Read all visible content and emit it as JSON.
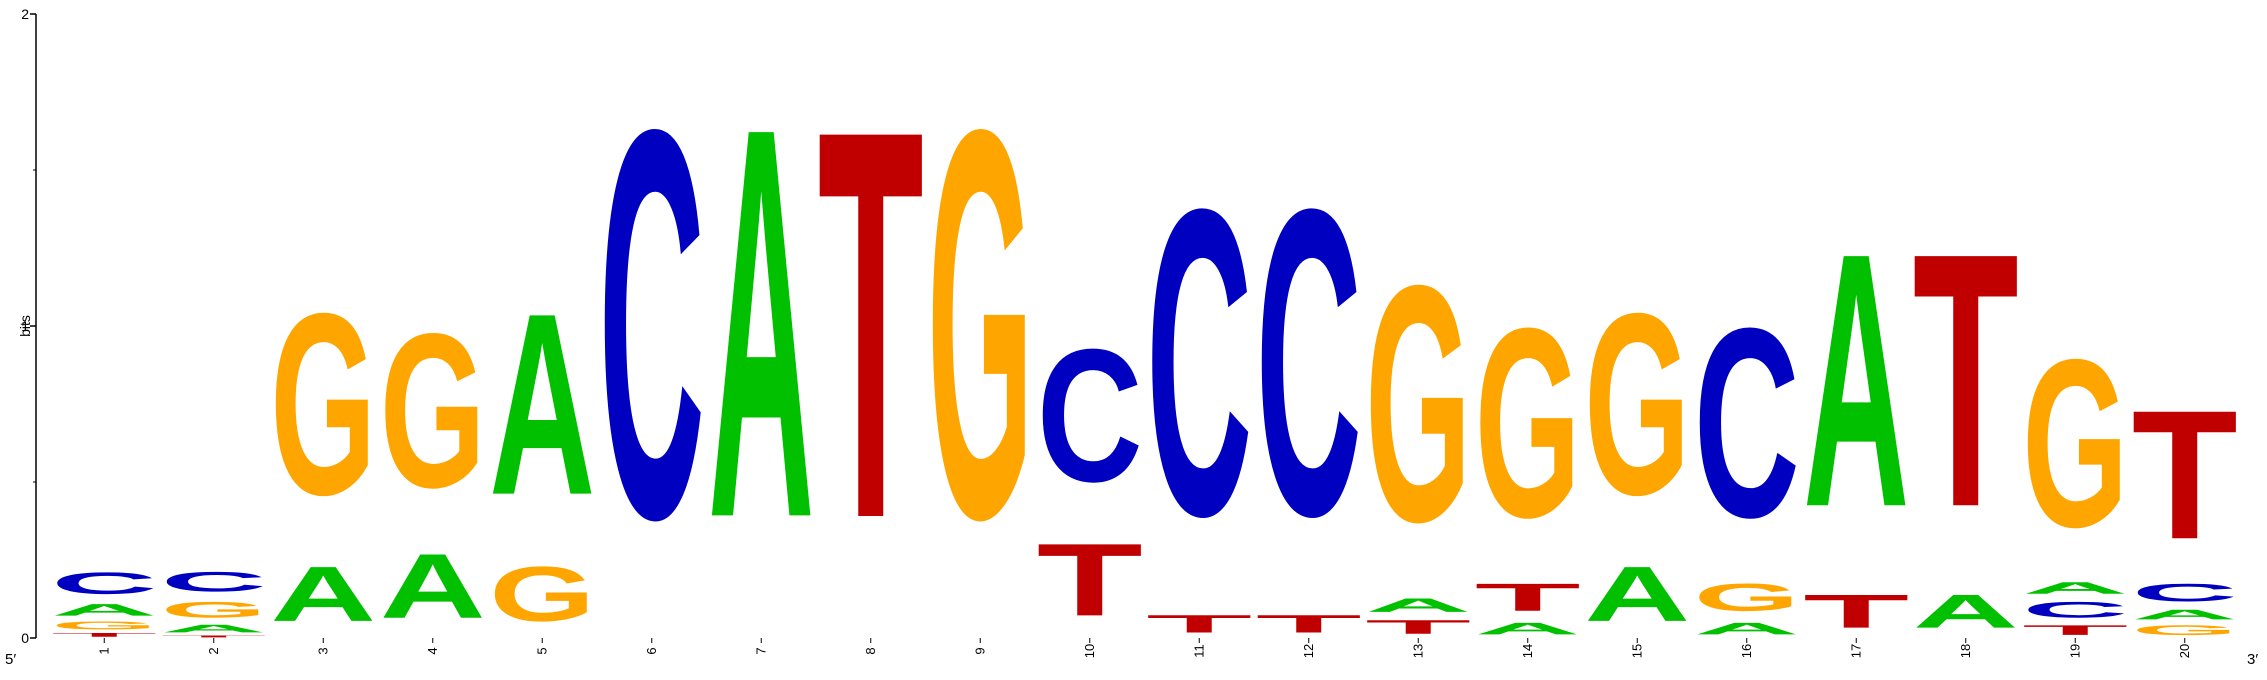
{
  "chart_data": {
    "type": "sequence-logo",
    "ylabel": "bits",
    "ylim": [
      0,
      2
    ],
    "yticks": [
      "0",
      "1",
      "2"
    ],
    "x_start_label": "5′",
    "x_end_label": "3′",
    "colors": {
      "A": "#00c000",
      "C": "#0000c0",
      "G": "#ffa500",
      "T": "#c00000"
    },
    "positions": [
      {
        "label": "1",
        "letters": [
          [
            "T",
            0.02
          ],
          [
            "G",
            0.04
          ],
          [
            "A",
            0.06
          ],
          [
            "C",
            0.11
          ]
        ]
      },
      {
        "label": "2",
        "letters": [
          [
            "T",
            0.01
          ],
          [
            "A",
            0.04
          ],
          [
            "G",
            0.08
          ],
          [
            "C",
            0.1
          ]
        ]
      },
      {
        "label": "3",
        "letters": [
          [
            "A",
            0.28
          ],
          [
            "G",
            0.93
          ]
        ]
      },
      {
        "label": "4",
        "letters": [
          [
            "A",
            0.33
          ],
          [
            "G",
            0.79
          ]
        ]
      },
      {
        "label": "5",
        "letters": [
          [
            "G",
            0.28
          ],
          [
            "A",
            0.93
          ]
        ]
      },
      {
        "label": "6",
        "letters": [
          [
            "C",
            1.99
          ]
        ]
      },
      {
        "label": "7",
        "letters": [
          [
            "A",
            2.0
          ]
        ]
      },
      {
        "label": "8",
        "letters": [
          [
            "T",
            1.99
          ]
        ]
      },
      {
        "label": "9",
        "letters": [
          [
            "G",
            1.99
          ]
        ]
      },
      {
        "label": "10",
        "letters": [
          [
            "T",
            0.37
          ],
          [
            "C",
            0.68
          ]
        ]
      },
      {
        "label": "11",
        "letters": [
          [
            "T",
            0.09
          ],
          [
            "C",
            1.57
          ]
        ]
      },
      {
        "label": "12",
        "letters": [
          [
            "T",
            0.09
          ],
          [
            "C",
            1.57
          ]
        ]
      },
      {
        "label": "13",
        "letters": [
          [
            "T",
            0.07
          ],
          [
            "A",
            0.07
          ],
          [
            "G",
            1.21
          ]
        ]
      },
      {
        "label": "14",
        "letters": [
          [
            "A",
            0.06
          ],
          [
            "T",
            0.14
          ],
          [
            "G",
            0.97
          ]
        ]
      },
      {
        "label": "15",
        "letters": [
          [
            "A",
            0.28
          ],
          [
            "G",
            0.93
          ]
        ]
      },
      {
        "label": "16",
        "letters": [
          [
            "A",
            0.06
          ],
          [
            "G",
            0.14
          ],
          [
            "C",
            0.97
          ]
        ]
      },
      {
        "label": "17",
        "letters": [
          [
            "T",
            0.17
          ],
          [
            "A",
            1.3
          ]
        ]
      },
      {
        "label": "18",
        "letters": [
          [
            "A",
            0.17
          ],
          [
            "T",
            1.3
          ]
        ]
      },
      {
        "label": "19",
        "letters": [
          [
            "T",
            0.05
          ],
          [
            "C",
            0.08
          ],
          [
            "A",
            0.06
          ],
          [
            "G",
            0.86
          ]
        ]
      },
      {
        "label": "20",
        "letters": [
          [
            "G",
            0.05
          ],
          [
            "A",
            0.05
          ],
          [
            "C",
            0.09
          ],
          [
            "T",
            0.66
          ]
        ]
      }
    ]
  }
}
